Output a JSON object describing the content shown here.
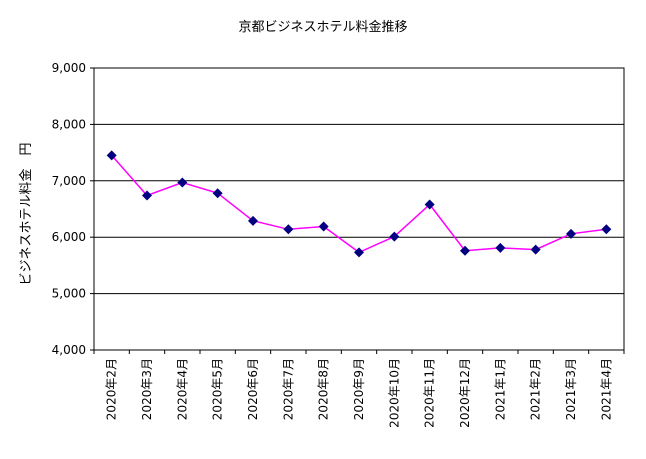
{
  "chart_data": {
    "type": "line",
    "title": "京都ビジネスホテル料金推移",
    "ylabel": "ビジネスホテル料金　円",
    "xlabel": "",
    "ylim": [
      4000,
      9000
    ],
    "yticks": [
      "4,000",
      "5,000",
      "6,000",
      "7,000",
      "8,000",
      "9,000"
    ],
    "categories": [
      "2020年2月",
      "2020年3月",
      "2020年4月",
      "2020年5月",
      "2020年6月",
      "2020年7月",
      "2020年8月",
      "2020年9月",
      "2020年10月",
      "2020年11月",
      "2020年12月",
      "2021年1月",
      "2021年2月",
      "2021年3月",
      "2021年4月"
    ],
    "series": [
      {
        "values": [
          7450,
          6740,
          6970,
          6780,
          6290,
          6140,
          6190,
          5730,
          6010,
          6580,
          5760,
          5810,
          5780,
          6060,
          6140
        ],
        "color": "#ff00ff",
        "marker_color": "#000080"
      }
    ],
    "grid": true,
    "legend": "none",
    "plot_background": "#ffffff"
  }
}
